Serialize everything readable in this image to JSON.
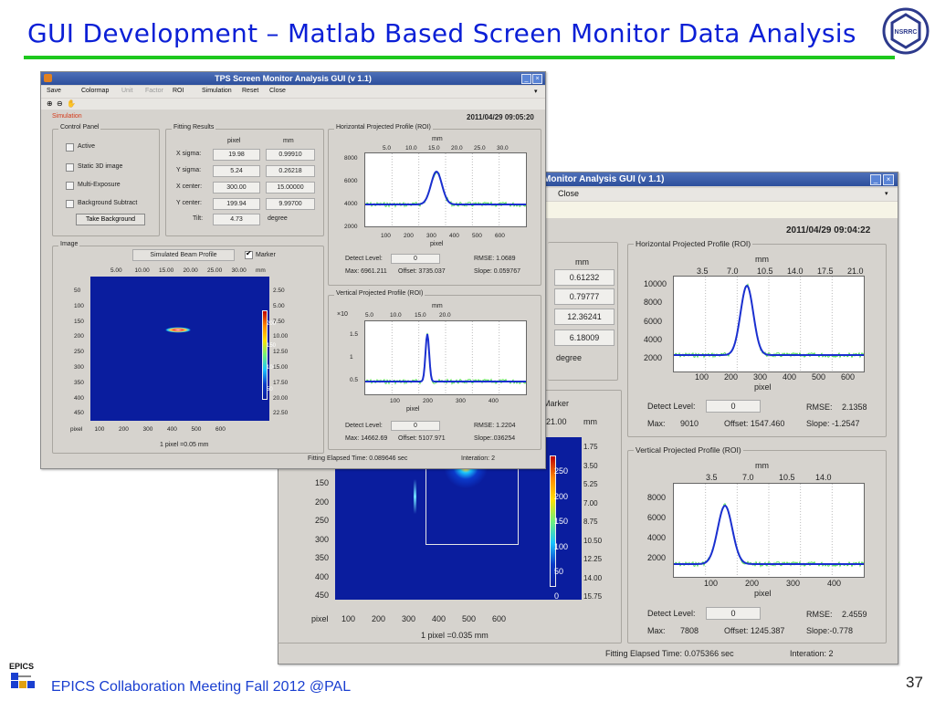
{
  "slide": {
    "title": "GUI Development – Matlab Based Screen Monitor Data Analysis",
    "footer": "EPICS Collaboration Meeting Fall 2012 @PAL",
    "page_number": "37",
    "logo_text": "NSRRC",
    "epics_logo_text": "EPICS"
  },
  "front": {
    "title": "TPS Screen Monitor Analysis GUI (v 1.1)",
    "menu": [
      "Save",
      "Colormap",
      "Unit",
      "Factor",
      "ROI",
      "Simulation",
      "Reset",
      "Close"
    ],
    "status": "Simulation",
    "timestamp": "2011/04/29 09:05:20",
    "control_panel": {
      "label": "Control Panel",
      "checkboxes": [
        "Active",
        "Static 3D image",
        "Multi-Exposure",
        "Background Subtract"
      ],
      "button": "Take Background"
    },
    "fitting": {
      "label": "Fitting Results",
      "col_pixel": "pixel",
      "col_mm": "mm",
      "rows": [
        {
          "label": "X sigma:",
          "pixel": "19.98",
          "mm": "0.99910"
        },
        {
          "label": "Y sigma:",
          "pixel": "5.24",
          "mm": "0.26218"
        },
        {
          "label": "X center:",
          "pixel": "300.00",
          "mm": "15.00000"
        },
        {
          "label": "Y center:",
          "pixel": "199.94",
          "mm": "9.99700"
        }
      ],
      "tilt_label": "Tilt:",
      "tilt_value": "4.73",
      "tilt_unit": "degree"
    },
    "image": {
      "label": "Image",
      "profile_button": "Simulated Beam Profile",
      "marker": "Marker",
      "top_ticks": [
        "5.00",
        "10.00",
        "15.00",
        "20.00",
        "25.00",
        "30.00",
        "mm"
      ],
      "left_ticks": [
        "50",
        "100",
        "150",
        "200",
        "250",
        "300",
        "350",
        "400",
        "450"
      ],
      "bottom_ticks": [
        "pixel",
        "100",
        "200",
        "300",
        "400",
        "500",
        "600"
      ],
      "right_ticks": [
        "2.50",
        "5.00",
        "7.50",
        "10.00",
        "12.50",
        "15.00",
        "17.50",
        "20.00",
        "22.50"
      ],
      "colorbar": [
        "200",
        "150",
        "100",
        "50"
      ],
      "scale": "1 pixel =0.05 mm"
    },
    "hprof": {
      "label": "Horizontal Projected Profile (ROI)",
      "unit": "mm",
      "top_ticks": [
        "5.0",
        "10.0",
        "15.0",
        "20.0",
        "25.0",
        "30.0"
      ],
      "y_ticks": [
        "8000",
        "6000",
        "4000",
        "2000"
      ],
      "x_ticks": [
        "100",
        "200",
        "300",
        "400",
        "500",
        "600"
      ],
      "xlabel": "pixel",
      "detect_label": "Detect Level:",
      "detect_value": "0",
      "rmse": "RMSE:  1.0689",
      "max": "Max: 6961.211",
      "offset": "Offset: 3735.037",
      "slope": "Slope: 0.059767"
    },
    "vprof": {
      "label": "Vertical Projected Profile (ROI)",
      "unit": "mm",
      "multiplier": "×10",
      "top_ticks": [
        "5.0",
        "10.0",
        "15.0",
        "20.0"
      ],
      "y_ticks": [
        "1.5",
        "1",
        "0.5"
      ],
      "x_ticks": [
        "100",
        "200",
        "300",
        "400"
      ],
      "xlabel": "pixel",
      "detect_label": "Detect Level:",
      "detect_value": "0",
      "rmse": "RMSE:  1.2204",
      "max": "Max: 14662.69",
      "offset": "Offset: 5107.971",
      "slope": "Slope:.036254"
    },
    "elapsed": "Fitting Elapsed Time: 0.089646 sec",
    "iteration": "Interation:  2"
  },
  "back": {
    "title": "Monitor Analysis GUI (v 1.1)",
    "menu_close": "Close",
    "timestamp": "2011/04/29 09:04:22",
    "mm_header": "mm",
    "mm_values": [
      "0.61232",
      "0.79777",
      "12.36241",
      "6.18009"
    ],
    "degree": "degree",
    "marker": "Marker",
    "mm_top": "21.00",
    "mm_unit": "mm",
    "left_ticks": [
      "150",
      "200",
      "250",
      "300",
      "350",
      "400",
      "450"
    ],
    "bottom_ticks": [
      "pixel",
      "100",
      "200",
      "300",
      "400",
      "500",
      "600"
    ],
    "right_ticks": [
      "1.75",
      "3.50",
      "5.25",
      "7.00",
      "8.75",
      "10.50",
      "12.25",
      "14.00",
      "15.75"
    ],
    "colorbar": [
      "250",
      "200",
      "150",
      "100",
      "50",
      "0"
    ],
    "scale": "1 pixel =0.035 mm",
    "hprof": {
      "label": "Horizontal Projected Profile (ROI)",
      "unit": "mm",
      "top_ticks": [
        "3.5",
        "7.0",
        "10.5",
        "14.0",
        "17.5",
        "21.0"
      ],
      "y_ticks": [
        "10000",
        "8000",
        "6000",
        "4000",
        "2000"
      ],
      "x_ticks": [
        "100",
        "200",
        "300",
        "400",
        "500",
        "600"
      ],
      "xlabel": "pixel",
      "detect_label": "Detect Level:",
      "detect_value": "0",
      "rmse_label": "RMSE:",
      "rmse_value": "2.1358",
      "max_label": "Max:",
      "max_value": "9010",
      "offset": "Offset: 1547.460",
      "slope": "Slope: -1.2547"
    },
    "vprof": {
      "label": "Vertical Projected Profile (ROI)",
      "unit": "mm",
      "top_ticks": [
        "3.5",
        "7.0",
        "10.5",
        "14.0"
      ],
      "y_ticks": [
        "8000",
        "6000",
        "4000",
        "2000"
      ],
      "x_ticks": [
        "100",
        "200",
        "300",
        "400"
      ],
      "xlabel": "pixel",
      "detect_label": "Detect Level:",
      "detect_value": "0",
      "rmse_label": "RMSE:",
      "rmse_value": "2.4559",
      "max_label": "Max:",
      "max_value": "7808",
      "offset": "Offset: 1245.387",
      "slope": "Slope:-0.778"
    },
    "elapsed": "Fitting Elapsed Time: 0.075366 sec",
    "iteration": "Interation:  2"
  }
}
